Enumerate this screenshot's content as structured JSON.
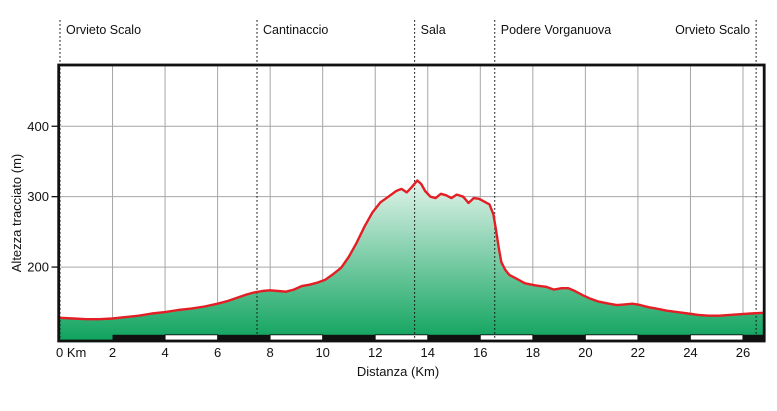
{
  "chart_data": {
    "type": "area",
    "title": "",
    "xlabel": "Distanza (Km)",
    "ylabel": "Altezza tracciato (m)",
    "xlim": [
      0,
      26.8
    ],
    "ylim": [
      95,
      487
    ],
    "grid": true,
    "legend": "none",
    "x_ticks": [
      {
        "km": 0,
        "label": "0 Km"
      },
      {
        "km": 2,
        "label": "2"
      },
      {
        "km": 4,
        "label": "4"
      },
      {
        "km": 6,
        "label": "6"
      },
      {
        "km": 8,
        "label": "8"
      },
      {
        "km": 10,
        "label": "10"
      },
      {
        "km": 12,
        "label": "12"
      },
      {
        "km": 14,
        "label": "14"
      },
      {
        "km": 16,
        "label": "16"
      },
      {
        "km": 18,
        "label": "18"
      },
      {
        "km": 20,
        "label": "20"
      },
      {
        "km": 22,
        "label": "22"
      },
      {
        "km": 24,
        "label": "24"
      },
      {
        "km": 26,
        "label": "26"
      }
    ],
    "y_ticks": [
      {
        "m": 200,
        "label": "200"
      },
      {
        "m": 300,
        "label": "300"
      },
      {
        "m": 400,
        "label": "400"
      }
    ],
    "waypoints": [
      {
        "km": 0,
        "label": "Orvieto Scalo",
        "align": "left"
      },
      {
        "km": 7.5,
        "label": "Cantinaccio",
        "align": "left"
      },
      {
        "km": 13.5,
        "label": "Sala",
        "align": "left"
      },
      {
        "km": 16.55,
        "label": "Podere Vorganuova",
        "align": "left"
      },
      {
        "km": 26.5,
        "label": "Orvieto Scalo",
        "align": "right"
      }
    ],
    "km_bar": {
      "start_km": 2,
      "step_km": 2,
      "pattern": [
        "black",
        "white"
      ]
    },
    "series": [
      {
        "name": "Altezza",
        "points": [
          [
            0,
            128
          ],
          [
            0.5,
            127
          ],
          [
            1.0,
            126
          ],
          [
            1.5,
            126
          ],
          [
            2.0,
            127
          ],
          [
            2.5,
            129
          ],
          [
            3.0,
            131
          ],
          [
            3.5,
            134
          ],
          [
            4.0,
            136
          ],
          [
            4.5,
            139
          ],
          [
            5.0,
            141
          ],
          [
            5.5,
            144
          ],
          [
            6.0,
            148
          ],
          [
            6.4,
            152
          ],
          [
            6.8,
            157
          ],
          [
            7.1,
            161
          ],
          [
            7.4,
            164
          ],
          [
            7.7,
            166
          ],
          [
            8.0,
            167
          ],
          [
            8.3,
            166
          ],
          [
            8.6,
            165
          ],
          [
            8.9,
            168
          ],
          [
            9.2,
            173
          ],
          [
            9.5,
            175
          ],
          [
            9.8,
            178
          ],
          [
            10.1,
            182
          ],
          [
            10.4,
            190
          ],
          [
            10.7,
            199
          ],
          [
            11.0,
            215
          ],
          [
            11.3,
            235
          ],
          [
            11.6,
            258
          ],
          [
            11.9,
            278
          ],
          [
            12.2,
            292
          ],
          [
            12.5,
            300
          ],
          [
            12.8,
            308
          ],
          [
            13.0,
            311
          ],
          [
            13.2,
            306
          ],
          [
            13.4,
            314
          ],
          [
            13.6,
            323
          ],
          [
            13.75,
            318
          ],
          [
            13.9,
            308
          ],
          [
            14.1,
            300
          ],
          [
            14.3,
            298
          ],
          [
            14.5,
            304
          ],
          [
            14.7,
            302
          ],
          [
            14.9,
            298
          ],
          [
            15.1,
            303
          ],
          [
            15.35,
            300
          ],
          [
            15.55,
            291
          ],
          [
            15.75,
            298
          ],
          [
            15.95,
            297
          ],
          [
            16.15,
            293
          ],
          [
            16.35,
            289
          ],
          [
            16.5,
            275
          ],
          [
            16.6,
            252
          ],
          [
            16.7,
            228
          ],
          [
            16.8,
            207
          ],
          [
            16.95,
            196
          ],
          [
            17.1,
            189
          ],
          [
            17.4,
            183
          ],
          [
            17.7,
            177
          ],
          [
            18.1,
            174
          ],
          [
            18.5,
            172
          ],
          [
            18.8,
            168
          ],
          [
            19.1,
            170
          ],
          [
            19.35,
            170
          ],
          [
            19.6,
            166
          ],
          [
            19.9,
            160
          ],
          [
            20.2,
            155
          ],
          [
            20.5,
            151
          ],
          [
            20.9,
            148
          ],
          [
            21.2,
            146
          ],
          [
            21.5,
            147
          ],
          [
            21.8,
            148
          ],
          [
            22.1,
            146
          ],
          [
            22.4,
            143
          ],
          [
            22.7,
            141
          ],
          [
            23.1,
            138
          ],
          [
            23.5,
            136
          ],
          [
            23.9,
            134
          ],
          [
            24.3,
            132
          ],
          [
            24.7,
            131
          ],
          [
            25.1,
            131
          ],
          [
            25.5,
            132
          ],
          [
            25.9,
            133
          ],
          [
            26.3,
            134
          ],
          [
            26.8,
            135
          ]
        ]
      }
    ],
    "colors": {
      "line": "#e41e25",
      "fill_top": "#f0f9f4",
      "fill_bottom": "#0fa35e",
      "grid": "#a6a6a6",
      "axis": "#111111",
      "text": "#111111"
    }
  }
}
